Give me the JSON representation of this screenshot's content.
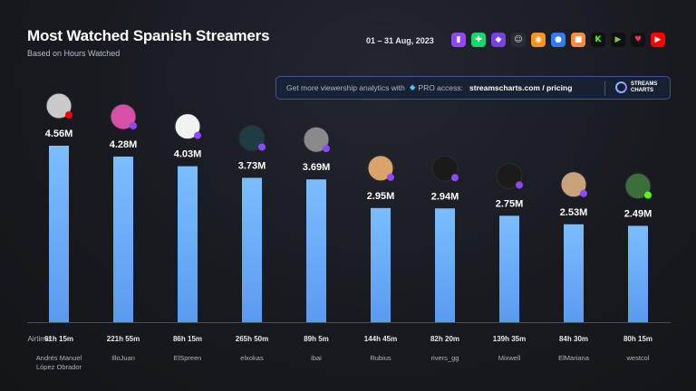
{
  "header": {
    "title": "Most Watched Spanish Streamers",
    "subtitle": "Based on Hours Watched",
    "date_range": "01 – 31 Aug, 2023"
  },
  "platforms": [
    {
      "icon": "twitch-icon",
      "color": "#9146ff"
    },
    {
      "icon": "trovo-icon",
      "color": "#19d66b"
    },
    {
      "icon": "kick-like-icon",
      "color": "#7b3fe4"
    },
    {
      "icon": "ghost-icon",
      "color": "#e8e8e8"
    },
    {
      "icon": "steam-icon",
      "color": "#f7931e"
    },
    {
      "icon": "globe-icon",
      "color": "#2f7cf6"
    },
    {
      "icon": "camera-icon",
      "color": "#ff8a3d"
    },
    {
      "icon": "kick-icon",
      "color": "#53fc18"
    },
    {
      "icon": "rumble-icon",
      "color": "#85c742"
    },
    {
      "icon": "heart-icon",
      "color": "#e8384f"
    },
    {
      "icon": "youtube-icon",
      "color": "#ff0000"
    }
  ],
  "banner": {
    "promo": "Get more viewership analytics with",
    "pro": "PRO access:",
    "link": "streamscharts.com / pricing",
    "logo_line1": "STREAMS",
    "logo_line2": "CHARTS"
  },
  "chart_data": {
    "type": "bar",
    "title": "Most Watched Spanish Streamers",
    "subtitle": "Based on Hours Watched",
    "unit": "M",
    "airtime_label": "Airtime:",
    "categories": [
      "Andrés Manuel López Obrador",
      "IlloJuan",
      "ElSpreen",
      "elxokas",
      "ibai",
      "Rubius",
      "rivers_gg",
      "Mixwell",
      "ElMariana",
      "westcol"
    ],
    "values": [
      4.56,
      4.28,
      4.03,
      3.73,
      3.69,
      2.95,
      2.94,
      2.75,
      2.53,
      2.49
    ],
    "value_labels": [
      "4.56M",
      "4.28M",
      "4.03M",
      "3.73M",
      "3.69M",
      "2.95M",
      "2.94M",
      "2.75M",
      "2.53M",
      "2.49M"
    ],
    "airtime": [
      "61h 15m",
      "221h 55m",
      "86h 15m",
      "265h 50m",
      "89h 5m",
      "144h 45m",
      "82h 20m",
      "139h 35m",
      "84h 30m",
      "80h 15m"
    ],
    "name_lines": [
      [
        "Andrés Manuel",
        "López Obrador"
      ],
      [
        "IlloJuan"
      ],
      [
        "ElSpreen"
      ],
      [
        "elxokas"
      ],
      [
        "ibai"
      ],
      [
        "Rubius"
      ],
      [
        "rivers_gg"
      ],
      [
        "Mixwell"
      ],
      [
        "ElMariana"
      ],
      [
        "westcol"
      ]
    ],
    "platform_badges": [
      "youtube",
      "twitch",
      "twitch",
      "twitch",
      "twitch",
      "twitch",
      "twitch",
      "twitch",
      "twitch",
      "kick"
    ],
    "ylim": [
      0,
      4.56
    ],
    "grid": false,
    "bar_color_top": "#7bbdff",
    "bar_color_bottom": "#5a9bf0"
  },
  "avatar_colors": [
    "#c9c9c9",
    "#d84fa6",
    "#f2f2f2",
    "#1f3b44",
    "#8a8a8a",
    "#d9a46a",
    "#1a1a1a",
    "#1b1b1b",
    "#caa27a",
    "#3a6e3a"
  ],
  "badge_colors": {
    "youtube": "#ff0000",
    "twitch": "#9146ff",
    "kick": "#53fc18"
  }
}
